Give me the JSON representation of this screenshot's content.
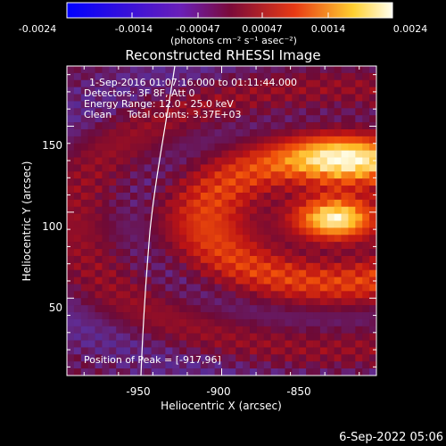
{
  "chart_data": {
    "type": "heatmap",
    "title": "Reconstructed RHESSI Image",
    "xlabel": "Heliocentric X (arcsec)",
    "ylabel": "Heliocentric Y (arcsec)",
    "xlim": [
      -995,
      -905
    ],
    "ylim": [
      5,
      185
    ],
    "xticks": [
      -950,
      -900,
      -850
    ],
    "yticks": [
      50,
      100,
      150
    ],
    "colorbar": {
      "range": [
        -0.0024,
        0.0024
      ],
      "tick_labels": [
        "-0.0024",
        "-0.0014",
        "-0.00047",
        "0.00047",
        "0.0014",
        "0.0024"
      ],
      "units": "(photons cm⁻² s⁻¹ asec⁻²)"
    },
    "annotations": [
      "1-Sep-2016 01:07:16.000 to 01:11:44.000",
      "Detectors: 3F 8F, Att 0",
      "Energy Range: 12.0 - 25.0 keV",
      "Clean     Total counts: 3.37E+03"
    ],
    "peak_label": "Position of Peak = [-917,96]",
    "peak": [
      -917,
      96
    ],
    "timestamp": "6-Sep-2022 05:06"
  }
}
